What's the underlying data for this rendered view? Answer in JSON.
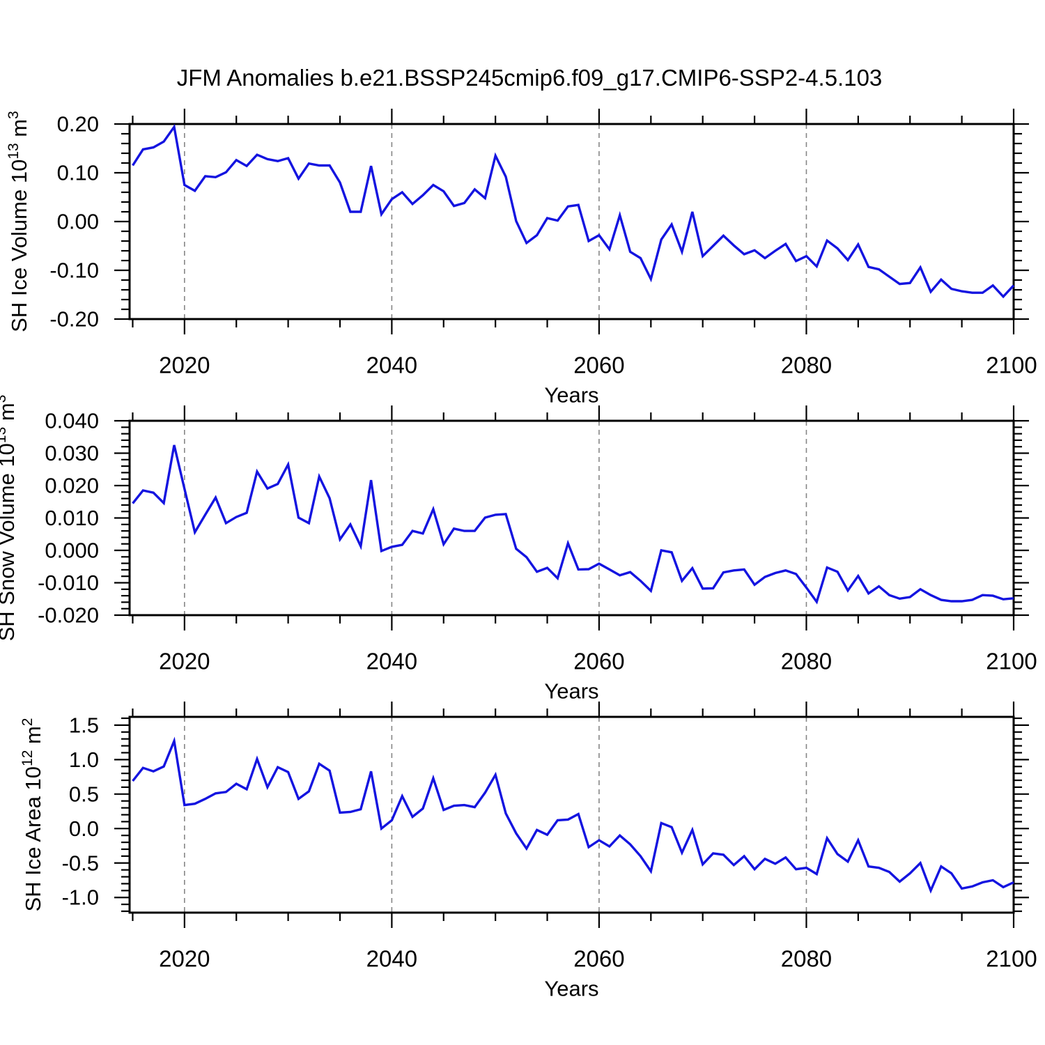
{
  "title": "JFM Anomalies b.e21.BSSP245cmip6.f09_g17.CMIP6-SSP2-4.5.103",
  "colors": {
    "line": "#1414e0",
    "axis": "#000000",
    "grid": "#868686",
    "background": "#ffffff",
    "text": "#000000"
  },
  "x_axis": {
    "label": "Years",
    "range": [
      2014.7,
      2100
    ],
    "major_ticks": [
      2020,
      2040,
      2060,
      2080,
      2100
    ],
    "tick_labels": [
      "2020",
      "2040",
      "2060",
      "2080",
      "2100"
    ],
    "minor_step": 5,
    "gridline_years": [
      2020,
      2040,
      2060,
      2080
    ]
  },
  "years": [
    2015,
    2016,
    2017,
    2018,
    2019,
    2020,
    2021,
    2022,
    2023,
    2024,
    2025,
    2026,
    2027,
    2028,
    2029,
    2030,
    2031,
    2032,
    2033,
    2034,
    2035,
    2036,
    2037,
    2038,
    2039,
    2040,
    2041,
    2042,
    2043,
    2044,
    2045,
    2046,
    2047,
    2048,
    2049,
    2050,
    2051,
    2052,
    2053,
    2054,
    2055,
    2056,
    2057,
    2058,
    2059,
    2060,
    2061,
    2062,
    2063,
    2064,
    2065,
    2066,
    2067,
    2068,
    2069,
    2070,
    2071,
    2072,
    2073,
    2074,
    2075,
    2076,
    2077,
    2078,
    2079,
    2080,
    2081,
    2082,
    2083,
    2084,
    2085,
    2086,
    2087,
    2088,
    2089,
    2090,
    2091,
    2092,
    2093,
    2094,
    2095,
    2096,
    2097,
    2098,
    2099,
    2100
  ],
  "chart_data": [
    {
      "type": "line",
      "id": "ice-volume",
      "ylabel_plain": "SH Ice Volume 10^13 m^3",
      "ylabel_parts": {
        "pre": "SH Ice Volume 10",
        "sup1": "13",
        "mid": " m",
        "sup2": "3"
      },
      "xlabel": "Years",
      "ylim": [
        -0.2,
        0.2
      ],
      "y_major_ticks": [
        0.2,
        0.1,
        0.0,
        -0.1,
        -0.2
      ],
      "y_tick_labels": [
        "0.20",
        "0.10",
        "0.00",
        "-0.10",
        "-0.20"
      ],
      "y_major_step": 0.1,
      "y_minor_step": 0.02,
      "grid": "vertical-dashed",
      "legend": "none",
      "values": [
        0.115,
        0.148,
        0.152,
        0.164,
        0.194,
        0.075,
        0.063,
        0.093,
        0.091,
        0.101,
        0.126,
        0.114,
        0.137,
        0.128,
        0.124,
        0.13,
        0.088,
        0.119,
        0.115,
        0.115,
        0.08,
        0.02,
        0.02,
        0.114,
        0.015,
        0.046,
        0.06,
        0.036,
        0.054,
        0.075,
        0.062,
        0.032,
        0.038,
        0.066,
        0.048,
        0.135,
        0.092,
        0.001,
        -0.044,
        -0.028,
        0.007,
        0.002,
        0.031,
        0.034,
        -0.04,
        -0.028,
        -0.057,
        0.013,
        -0.062,
        -0.075,
        -0.118,
        -0.037,
        -0.006,
        -0.062,
        0.02,
        -0.071,
        -0.05,
        -0.029,
        -0.049,
        -0.067,
        -0.059,
        -0.075,
        -0.06,
        -0.046,
        -0.081,
        -0.071,
        -0.092,
        -0.039,
        -0.055,
        -0.079,
        -0.047,
        -0.093,
        -0.098,
        -0.113,
        -0.128,
        -0.126,
        -0.094,
        -0.144,
        -0.119,
        -0.138,
        -0.143,
        -0.146,
        -0.146,
        -0.131,
        -0.154,
        -0.131
      ]
    },
    {
      "type": "line",
      "id": "snow-volume",
      "ylabel_plain": "SH Snow Volume 10^13 m^3",
      "ylabel_parts": {
        "pre": "SH Snow Volume 10",
        "sup1": "13",
        "mid": " m",
        "sup2": "3"
      },
      "xlabel": "Years",
      "ylim": [
        -0.02,
        0.04
      ],
      "y_major_ticks": [
        0.04,
        0.03,
        0.02,
        0.01,
        0.0,
        -0.01,
        -0.02
      ],
      "y_tick_labels": [
        "0.040",
        "0.030",
        "0.020",
        "0.010",
        "0.000",
        "-0.010",
        "-0.020"
      ],
      "y_major_step": 0.01,
      "y_minor_step": 0.002,
      "grid": "vertical-dashed",
      "legend": "none",
      "values": [
        0.0145,
        0.0185,
        0.0178,
        0.0146,
        0.0325,
        0.019,
        0.0056,
        0.011,
        0.0163,
        0.0084,
        0.0103,
        0.0116,
        0.0243,
        0.0191,
        0.0205,
        0.0265,
        0.0101,
        0.0084,
        0.0228,
        0.0161,
        0.0034,
        0.008,
        0.0013,
        0.0217,
        -0.0002,
        0.0011,
        0.0017,
        0.006,
        0.0052,
        0.0127,
        0.0019,
        0.0067,
        0.006,
        0.006,
        0.0101,
        0.011,
        0.0112,
        0.0005,
        -0.0021,
        -0.0066,
        -0.0054,
        -0.0086,
        0.0022,
        -0.0059,
        -0.0058,
        -0.0041,
        -0.0059,
        -0.0077,
        -0.0067,
        -0.0094,
        -0.0125,
        0.0,
        -0.0006,
        -0.0094,
        -0.0055,
        -0.0118,
        -0.0117,
        -0.0068,
        -0.0062,
        -0.0059,
        -0.0106,
        -0.0082,
        -0.007,
        -0.0062,
        -0.0073,
        -0.0115,
        -0.0159,
        -0.0053,
        -0.0066,
        -0.0124,
        -0.0079,
        -0.0133,
        -0.0111,
        -0.0138,
        -0.0149,
        -0.0144,
        -0.012,
        -0.0138,
        -0.0153,
        -0.0157,
        -0.0157,
        -0.0153,
        -0.0138,
        -0.014,
        -0.0151,
        -0.0148
      ]
    },
    {
      "type": "line",
      "id": "ice-area",
      "ylabel_plain": "SH Ice Area 10^12 m^2",
      "ylabel_parts": {
        "pre": "SH Ice Area 10",
        "sup1": "12",
        "mid": " m",
        "sup2": "2"
      },
      "xlabel": "Years",
      "ylim": [
        -1.22,
        1.62
      ],
      "y_major_ticks": [
        1.5,
        1.0,
        0.5,
        0.0,
        -0.5,
        -1.0
      ],
      "y_tick_labels": [
        "1.5",
        "1.0",
        "0.5",
        "0.0",
        "-0.5",
        "-1.0"
      ],
      "y_major_step": 0.5,
      "y_minor_step": 0.1,
      "grid": "vertical-dashed",
      "legend": "none",
      "values": [
        0.69,
        0.88,
        0.83,
        0.9,
        1.27,
        0.34,
        0.36,
        0.43,
        0.51,
        0.53,
        0.65,
        0.57,
        1.01,
        0.6,
        0.89,
        0.82,
        0.43,
        0.54,
        0.94,
        0.84,
        0.23,
        0.24,
        0.28,
        0.83,
        0.0,
        0.12,
        0.47,
        0.17,
        0.29,
        0.73,
        0.27,
        0.33,
        0.34,
        0.31,
        0.52,
        0.78,
        0.22,
        -0.07,
        -0.29,
        -0.02,
        -0.09,
        0.12,
        0.13,
        0.21,
        -0.27,
        -0.17,
        -0.26,
        -0.1,
        -0.23,
        -0.4,
        -0.62,
        0.08,
        0.02,
        -0.35,
        -0.02,
        -0.52,
        -0.36,
        -0.38,
        -0.53,
        -0.4,
        -0.59,
        -0.44,
        -0.51,
        -0.42,
        -0.59,
        -0.57,
        -0.66,
        -0.14,
        -0.37,
        -0.48,
        -0.17,
        -0.55,
        -0.57,
        -0.63,
        -0.77,
        -0.65,
        -0.5,
        -0.9,
        -0.55,
        -0.65,
        -0.87,
        -0.84,
        -0.78,
        -0.75,
        -0.85,
        -0.78
      ]
    }
  ]
}
